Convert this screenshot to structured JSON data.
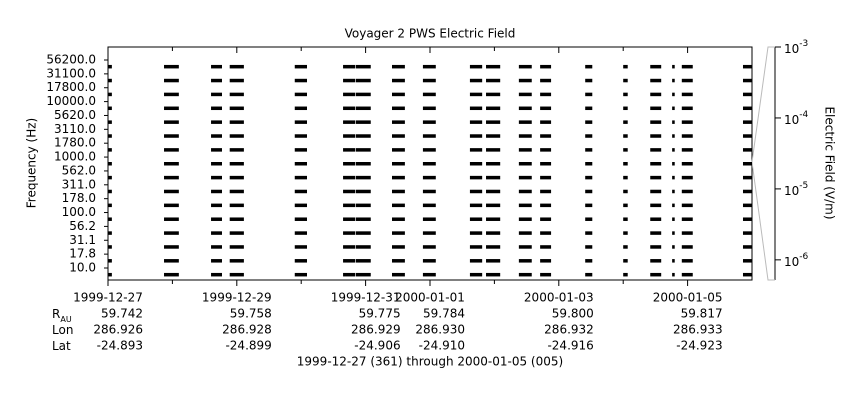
{
  "chart_data": {
    "type": "coverage",
    "title": "Voyager 2 PWS Electric Field",
    "ylabel": "Frequency (Hz)",
    "channels": [
      "10.0",
      "17.8",
      "31.1",
      "56.2",
      "100.0",
      "178.0",
      "311.0",
      "562.0",
      "1000.0",
      "1780.0",
      "3110.0",
      "5620.0",
      "10000.0",
      "17800.0",
      "31100.0",
      "56200.0"
    ],
    "xlim": [
      0,
      10
    ],
    "xticks": [
      {
        "value": 0,
        "label": "1999-12-27"
      },
      {
        "value": 2,
        "label": "1999-12-29"
      },
      {
        "value": 4,
        "label": "1999-12-31"
      },
      {
        "value": 5,
        "label": "2000-01-01"
      },
      {
        "value": 7,
        "label": "2000-01-03"
      },
      {
        "value": 9,
        "label": "2000-01-05"
      }
    ],
    "xminorticks": [
      1,
      3,
      6,
      8
    ],
    "coverage": [
      [
        0,
        0.06
      ],
      [
        0.87,
        1.1
      ],
      [
        1.6,
        1.77
      ],
      [
        1.89,
        2.11
      ],
      [
        2.9,
        3.09
      ],
      [
        3.65,
        3.84
      ],
      [
        3.85,
        4.08
      ],
      [
        4.41,
        4.61
      ],
      [
        4.89,
        5.09
      ],
      [
        5.62,
        5.81
      ],
      [
        5.87,
        6.09
      ],
      [
        6.38,
        6.58
      ],
      [
        6.71,
        6.88
      ],
      [
        7.41,
        7.52
      ],
      [
        8.0,
        8.07
      ],
      [
        8.42,
        8.59
      ],
      [
        8.76,
        8.8
      ],
      [
        8.91,
        9.08
      ],
      [
        9.86,
        10
      ]
    ],
    "color": "#000000",
    "y2label": "Electric Field (V/m)",
    "y2log": true,
    "y2lim": [
      5.2e-07,
      0.001
    ],
    "y2ticks": [
      {
        "value": 0.001,
        "base": "10",
        "exponent": "-3"
      },
      {
        "value": 0.0001,
        "base": "10",
        "exponent": "-4"
      },
      {
        "value": 1e-05,
        "base": "10",
        "exponent": "-5"
      },
      {
        "value": 1e-06,
        "base": "10",
        "exponent": "-6"
      }
    ],
    "ephemeris": [
      {
        "label": "R",
        "sub": "AU",
        "values": [
          "59.742",
          "59.758",
          "59.775",
          "59.784",
          "59.800",
          "59.817"
        ]
      },
      {
        "label": "Lon",
        "values": [
          "286.926",
          "286.928",
          "286.929",
          "286.930",
          "286.932",
          "286.933"
        ]
      },
      {
        "label": "Lat",
        "values": [
          "-24.893",
          "-24.899",
          "-24.906",
          "-24.910",
          "-24.916",
          "-24.923"
        ]
      }
    ],
    "footer": "1999-12-27 (361) through 2000-01-05 (005)"
  }
}
